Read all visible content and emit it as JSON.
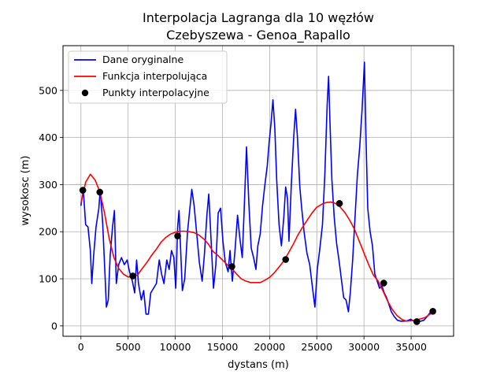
{
  "chart_data": {
    "type": "line",
    "title_line1": "Interpolacja Lagranga dla 10 węzłów",
    "title_line2": "Czebyszewa - Genoa_Rapallo",
    "xlabel": "dystans (m)",
    "ylabel": "wysokosc (m)",
    "xlim": [
      -1900,
      39500
    ],
    "ylim": [
      -22,
      595
    ],
    "xticks": [
      0,
      5000,
      10000,
      15000,
      20000,
      25000,
      30000,
      35000
    ],
    "yticks": [
      0,
      100,
      200,
      300,
      400,
      500
    ],
    "grid": true,
    "legend_position": "top-left",
    "legend": [
      {
        "label": "Dane oryginalne",
        "color": "#0000ff",
        "kind": "line"
      },
      {
        "label": "Funkcja interpolująca",
        "color": "#ff0000",
        "kind": "line"
      },
      {
        "label": "Punkty interpolacyjne",
        "color": "#000000",
        "kind": "marker"
      }
    ],
    "series": [
      {
        "name": "Dane oryginalne",
        "color": "#0000ff",
        "points": [
          [
            0,
            255
          ],
          [
            250,
            290
          ],
          [
            500,
            215
          ],
          [
            750,
            210
          ],
          [
            1000,
            160
          ],
          [
            1150,
            90
          ],
          [
            1350,
            150
          ],
          [
            1600,
            210
          ],
          [
            1900,
            250
          ],
          [
            2050,
            290
          ],
          [
            2300,
            220
          ],
          [
            2550,
            110
          ],
          [
            2700,
            40
          ],
          [
            2900,
            55
          ],
          [
            3100,
            150
          ],
          [
            3350,
            210
          ],
          [
            3550,
            245
          ],
          [
            3750,
            90
          ],
          [
            4000,
            130
          ],
          [
            4300,
            145
          ],
          [
            4600,
            130
          ],
          [
            4900,
            140
          ],
          [
            5150,
            115
          ],
          [
            5450,
            95
          ],
          [
            5700,
            70
          ],
          [
            5900,
            140
          ],
          [
            6100,
            90
          ],
          [
            6400,
            55
          ],
          [
            6650,
            75
          ],
          [
            6900,
            25
          ],
          [
            7150,
            25
          ],
          [
            7400,
            70
          ],
          [
            7700,
            80
          ],
          [
            8000,
            90
          ],
          [
            8300,
            140
          ],
          [
            8550,
            110
          ],
          [
            8800,
            90
          ],
          [
            9100,
            140
          ],
          [
            9350,
            120
          ],
          [
            9600,
            160
          ],
          [
            9850,
            145
          ],
          [
            10050,
            80
          ],
          [
            10250,
            210
          ],
          [
            10400,
            245
          ],
          [
            10550,
            170
          ],
          [
            10750,
            75
          ],
          [
            11000,
            100
          ],
          [
            11300,
            200
          ],
          [
            11550,
            250
          ],
          [
            11750,
            290
          ],
          [
            12000,
            255
          ],
          [
            12300,
            190
          ],
          [
            12550,
            135
          ],
          [
            12850,
            95
          ],
          [
            13100,
            155
          ],
          [
            13350,
            235
          ],
          [
            13550,
            280
          ],
          [
            13800,
            180
          ],
          [
            14050,
            80
          ],
          [
            14300,
            130
          ],
          [
            14550,
            240
          ],
          [
            14800,
            250
          ],
          [
            15050,
            180
          ],
          [
            15300,
            135
          ],
          [
            15600,
            115
          ],
          [
            15800,
            160
          ],
          [
            16050,
            95
          ],
          [
            16350,
            165
          ],
          [
            16600,
            235
          ],
          [
            16850,
            185
          ],
          [
            17100,
            145
          ],
          [
            17300,
            245
          ],
          [
            17550,
            380
          ],
          [
            17800,
            260
          ],
          [
            18050,
            165
          ],
          [
            18300,
            145
          ],
          [
            18550,
            120
          ],
          [
            18750,
            170
          ],
          [
            19000,
            195
          ],
          [
            19250,
            255
          ],
          [
            19500,
            300
          ],
          [
            19750,
            340
          ],
          [
            19950,
            390
          ],
          [
            20150,
            430
          ],
          [
            20350,
            480
          ],
          [
            20550,
            420
          ],
          [
            20750,
            310
          ],
          [
            21000,
            215
          ],
          [
            21250,
            170
          ],
          [
            21500,
            230
          ],
          [
            21700,
            295
          ],
          [
            21900,
            270
          ],
          [
            22050,
            180
          ],
          [
            22300,
            300
          ],
          [
            22550,
            400
          ],
          [
            22750,
            460
          ],
          [
            22950,
            400
          ],
          [
            23200,
            295
          ],
          [
            23400,
            250
          ],
          [
            23650,
            200
          ],
          [
            23950,
            155
          ],
          [
            24250,
            130
          ],
          [
            24550,
            80
          ],
          [
            24800,
            40
          ],
          [
            25050,
            120
          ],
          [
            25300,
            160
          ],
          [
            25600,
            215
          ],
          [
            25850,
            320
          ],
          [
            26100,
            470
          ],
          [
            26250,
            530
          ],
          [
            26400,
            430
          ],
          [
            26600,
            310
          ],
          [
            26850,
            230
          ],
          [
            27100,
            175
          ],
          [
            27350,
            140
          ],
          [
            27600,
            100
          ],
          [
            27850,
            60
          ],
          [
            28100,
            55
          ],
          [
            28350,
            30
          ],
          [
            28550,
            70
          ],
          [
            28800,
            140
          ],
          [
            29050,
            230
          ],
          [
            29300,
            320
          ],
          [
            29550,
            380
          ],
          [
            29800,
            460
          ],
          [
            30050,
            560
          ],
          [
            30200,
            410
          ],
          [
            30400,
            250
          ],
          [
            30650,
            200
          ],
          [
            30900,
            170
          ],
          [
            31150,
            110
          ],
          [
            31400,
            95
          ],
          [
            31650,
            80
          ],
          [
            31900,
            85
          ],
          [
            32150,
            70
          ],
          [
            32400,
            60
          ],
          [
            32650,
            45
          ],
          [
            32900,
            30
          ],
          [
            33200,
            20
          ],
          [
            33550,
            12
          ],
          [
            33900,
            10
          ],
          [
            34250,
            10
          ],
          [
            34600,
            11
          ],
          [
            34950,
            14
          ],
          [
            35300,
            10
          ],
          [
            35650,
            12
          ],
          [
            36000,
            10
          ],
          [
            36350,
            12
          ],
          [
            36700,
            20
          ],
          [
            37000,
            28
          ],
          [
            37300,
            33
          ]
        ]
      },
      {
        "name": "Funkcja interpolująca",
        "color": "#ff0000",
        "points": [
          [
            0,
            260
          ],
          [
            500,
            305
          ],
          [
            1000,
            322
          ],
          [
            1500,
            310
          ],
          [
            2000,
            285
          ],
          [
            2500,
            240
          ],
          [
            3000,
            185
          ],
          [
            3500,
            145
          ],
          [
            4000,
            122
          ],
          [
            4500,
            110
          ],
          [
            5000,
            104
          ],
          [
            5500,
            105
          ],
          [
            6000,
            108
          ],
          [
            6500,
            122
          ],
          [
            7000,
            135
          ],
          [
            7500,
            150
          ],
          [
            8000,
            163
          ],
          [
            8500,
            178
          ],
          [
            9000,
            188
          ],
          [
            9500,
            195
          ],
          [
            10000,
            199
          ],
          [
            10500,
            201
          ],
          [
            11000,
            201
          ],
          [
            11500,
            200
          ],
          [
            12000,
            198
          ],
          [
            12500,
            193
          ],
          [
            13000,
            185
          ],
          [
            13500,
            174
          ],
          [
            14000,
            158
          ],
          [
            14500,
            150
          ],
          [
            15000,
            140
          ],
          [
            15500,
            130
          ],
          [
            16000,
            122
          ],
          [
            16500,
            110
          ],
          [
            17000,
            100
          ],
          [
            17500,
            95
          ],
          [
            18000,
            92
          ],
          [
            18500,
            92
          ],
          [
            19000,
            92
          ],
          [
            19500,
            97
          ],
          [
            20000,
            103
          ],
          [
            20500,
            113
          ],
          [
            21000,
            125
          ],
          [
            21500,
            138
          ],
          [
            22000,
            155
          ],
          [
            22500,
            173
          ],
          [
            23000,
            193
          ],
          [
            23500,
            210
          ],
          [
            24000,
            225
          ],
          [
            24500,
            240
          ],
          [
            25000,
            252
          ],
          [
            25500,
            258
          ],
          [
            26000,
            262
          ],
          [
            26500,
            263
          ],
          [
            27000,
            260
          ],
          [
            27500,
            252
          ],
          [
            28000,
            240
          ],
          [
            28500,
            224
          ],
          [
            29000,
            205
          ],
          [
            29500,
            180
          ],
          [
            30000,
            155
          ],
          [
            30500,
            130
          ],
          [
            31000,
            108
          ],
          [
            31500,
            95
          ],
          [
            32000,
            75
          ],
          [
            32500,
            53
          ],
          [
            33000,
            35
          ],
          [
            33500,
            22
          ],
          [
            34000,
            14
          ],
          [
            34500,
            10
          ],
          [
            35000,
            11
          ],
          [
            35500,
            12
          ],
          [
            36000,
            15
          ],
          [
            36500,
            18
          ],
          [
            37000,
            25
          ],
          [
            37300,
            28
          ]
        ]
      }
    ],
    "nodes": [
      [
        200,
        288
      ],
      [
        2000,
        284
      ],
      [
        5500,
        106
      ],
      [
        10250,
        191
      ],
      [
        16000,
        126
      ],
      [
        21700,
        141
      ],
      [
        27400,
        260
      ],
      [
        32100,
        91
      ],
      [
        35600,
        9
      ],
      [
        37300,
        31
      ]
    ]
  }
}
